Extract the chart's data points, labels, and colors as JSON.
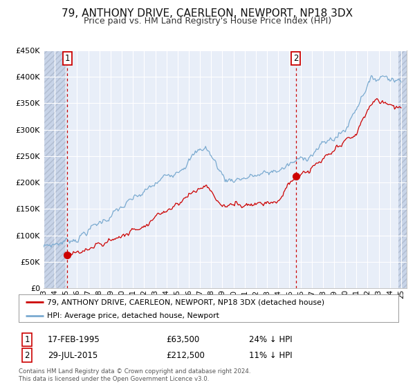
{
  "title": "79, ANTHONY DRIVE, CAERLEON, NEWPORT, NP18 3DX",
  "subtitle": "Price paid vs. HM Land Registry's House Price Index (HPI)",
  "title_fontsize": 11,
  "subtitle_fontsize": 9,
  "background_color": "#ffffff",
  "plot_bg_color": "#e8eef8",
  "grid_color": "#ffffff",
  "hatch_color": "#c8d4e8",
  "ylim": [
    0,
    450000
  ],
  "xlim_start": 1993.0,
  "xlim_end": 2025.5,
  "yticks": [
    0,
    50000,
    100000,
    150000,
    200000,
    250000,
    300000,
    350000,
    400000,
    450000
  ],
  "ytick_labels": [
    "£0",
    "£50K",
    "£100K",
    "£150K",
    "£200K",
    "£250K",
    "£300K",
    "£350K",
    "£400K",
    "£450K"
  ],
  "xticks": [
    1993,
    1994,
    1995,
    1996,
    1997,
    1998,
    1999,
    2000,
    2001,
    2002,
    2003,
    2004,
    2005,
    2006,
    2007,
    2008,
    2009,
    2010,
    2011,
    2012,
    2013,
    2014,
    2015,
    2016,
    2017,
    2018,
    2019,
    2020,
    2021,
    2022,
    2023,
    2024,
    2025
  ],
  "sale1_x": 1995.12,
  "sale1_y": 63500,
  "sale1_label": "1",
  "sale1_date": "17-FEB-1995",
  "sale1_price": "£63,500",
  "sale1_hpi": "24% ↓ HPI",
  "sale2_x": 2015.57,
  "sale2_y": 212500,
  "sale2_label": "2",
  "sale2_date": "29-JUL-2015",
  "sale2_price": "£212,500",
  "sale2_hpi": "11% ↓ HPI",
  "house_line_color": "#cc0000",
  "hpi_line_color": "#7aaad0",
  "legend_label_house": "79, ANTHONY DRIVE, CAERLEON, NEWPORT, NP18 3DX (detached house)",
  "legend_label_hpi": "HPI: Average price, detached house, Newport",
  "footer_line1": "Contains HM Land Registry data © Crown copyright and database right 2024.",
  "footer_line2": "This data is licensed under the Open Government Licence v3.0.",
  "marker_color": "#cc0000",
  "vline_color": "#cc0000",
  "box_border_color": "#cc0000"
}
